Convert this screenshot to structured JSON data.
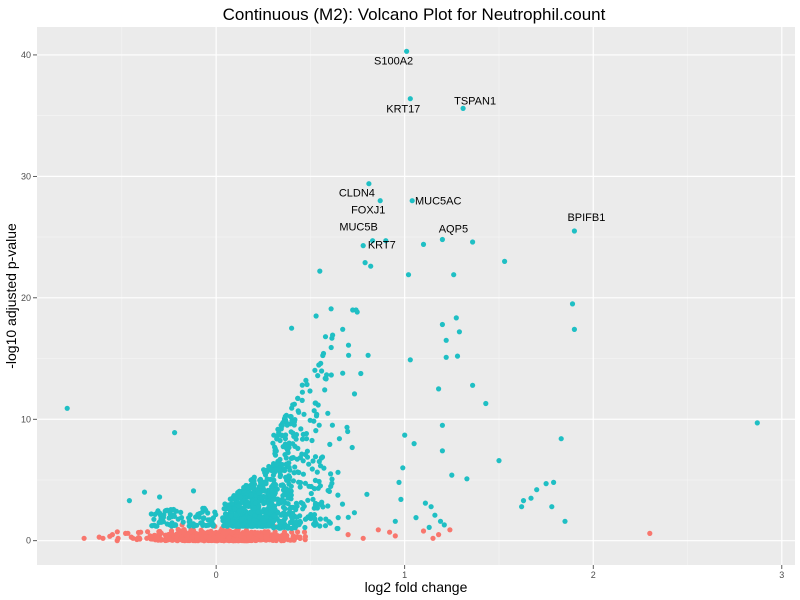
{
  "chart_data": {
    "type": "scatter",
    "title": "Continuous (M2): Volcano Plot for Neutrophil.count",
    "xlabel": "log2 fold change",
    "ylabel": "-log10 adjusted p-value",
    "xlim": [
      -0.95,
      3.07
    ],
    "ylim": [
      -2.0,
      42.3
    ],
    "x_ticks": [
      0,
      1,
      2,
      3
    ],
    "y_ticks": [
      0,
      10,
      20,
      30,
      40
    ],
    "grid": true,
    "background": "#ebebeb",
    "colors": {
      "significant": "#1fbfc4",
      "not_significant": "#f8766d"
    },
    "labeled_points": [
      {
        "label": "S100A2",
        "x": 1.01,
        "y": 40.3
      },
      {
        "label": "KRT17",
        "x": 1.03,
        "y": 36.4
      },
      {
        "label": "TSPAN1",
        "x": 1.31,
        "y": 35.6
      },
      {
        "label": "CLDN4",
        "x": 0.81,
        "y": 29.4
      },
      {
        "label": "FOXJ1",
        "x": 0.87,
        "y": 28.0
      },
      {
        "label": "MUC5AC",
        "x": 1.04,
        "y": 28.0
      },
      {
        "label": "BPIFB1",
        "x": 1.9,
        "y": 25.5
      },
      {
        "label": "MUC5B",
        "x": 0.83,
        "y": 24.7
      },
      {
        "label": "KRT7",
        "x": 0.9,
        "y": 24.7
      },
      {
        "label": "AQP5",
        "x": 1.2,
        "y": 24.8
      }
    ],
    "series": [
      {
        "name": "significant",
        "points": [
          [
            -0.79,
            10.9
          ],
          [
            -0.22,
            8.9
          ],
          [
            -0.46,
            3.3
          ],
          [
            -0.38,
            4.0
          ],
          [
            -0.3,
            3.6
          ],
          [
            -0.12,
            4.1
          ],
          [
            0.55,
            22.2
          ],
          [
            0.79,
            22.9
          ],
          [
            0.82,
            22.6
          ],
          [
            1.02,
            21.9
          ],
          [
            1.26,
            21.9
          ],
          [
            1.53,
            23.0
          ],
          [
            1.36,
            24.6
          ],
          [
            1.1,
            24.4
          ],
          [
            0.78,
            24.3
          ],
          [
            1.22,
            16.5
          ],
          [
            1.2,
            17.8
          ],
          [
            1.29,
            17.2
          ],
          [
            1.22,
            15.1
          ],
          [
            1.28,
            15.2
          ],
          [
            0.4,
            17.5
          ],
          [
            0.53,
            18.5
          ],
          [
            0.61,
            19.1
          ],
          [
            0.58,
            16.8
          ],
          [
            1.89,
            19.5
          ],
          [
            1.9,
            17.4
          ],
          [
            1.43,
            11.3
          ],
          [
            1.36,
            12.8
          ],
          [
            1.18,
            12.5
          ],
          [
            1.83,
            8.4
          ],
          [
            2.87,
            9.7
          ],
          [
            1.2,
            9.5
          ],
          [
            1.03,
            14.9
          ],
          [
            1.2,
            7.4
          ],
          [
            1.5,
            6.6
          ],
          [
            1.25,
            5.4
          ],
          [
            1.33,
            5.1
          ],
          [
            1.79,
            4.8
          ],
          [
            1.75,
            4.7
          ],
          [
            1.7,
            4.2
          ],
          [
            1.67,
            3.5
          ],
          [
            1.63,
            3.3
          ],
          [
            1.62,
            2.8
          ],
          [
            1.78,
            2.8
          ],
          [
            1.85,
            1.6
          ],
          [
            1.05,
            8.0
          ],
          [
            1.0,
            8.7
          ],
          [
            0.99,
            6.0
          ],
          [
            0.97,
            4.8
          ],
          [
            0.95,
            1.6
          ],
          [
            0.98,
            3.4
          ],
          [
            1.11,
            3.1
          ],
          [
            1.14,
            2.8
          ],
          [
            1.16,
            2.1
          ],
          [
            1.19,
            1.6
          ],
          [
            1.06,
            1.9
          ],
          [
            1.13,
            1.1
          ],
          [
            1.21,
            1.3
          ]
        ]
      },
      {
        "name": "not_significant",
        "points": [
          [
            -0.7,
            0.2
          ],
          [
            -0.62,
            0.3
          ],
          [
            -0.6,
            0.2
          ],
          [
            -0.55,
            0.5
          ],
          [
            -0.52,
            0.2
          ],
          [
            -0.48,
            0.6
          ],
          [
            -0.45,
            0.3
          ],
          [
            -0.42,
            0.1
          ],
          [
            -0.4,
            0.7
          ],
          [
            -0.35,
            0.4
          ],
          [
            1.1,
            0.8
          ],
          [
            1.18,
            0.5
          ],
          [
            1.24,
            0.9
          ],
          [
            1.15,
            0.2
          ],
          [
            2.3,
            0.6
          ],
          [
            0.7,
            0.5
          ],
          [
            0.78,
            0.2
          ],
          [
            0.86,
            0.9
          ],
          [
            0.92,
            0.7
          ],
          [
            0.95,
            0.4
          ]
        ]
      }
    ],
    "generated_cloud": {
      "description_hidden": true,
      "significant_count": 1050,
      "not_significant_count": 900,
      "seed": 7
    }
  }
}
